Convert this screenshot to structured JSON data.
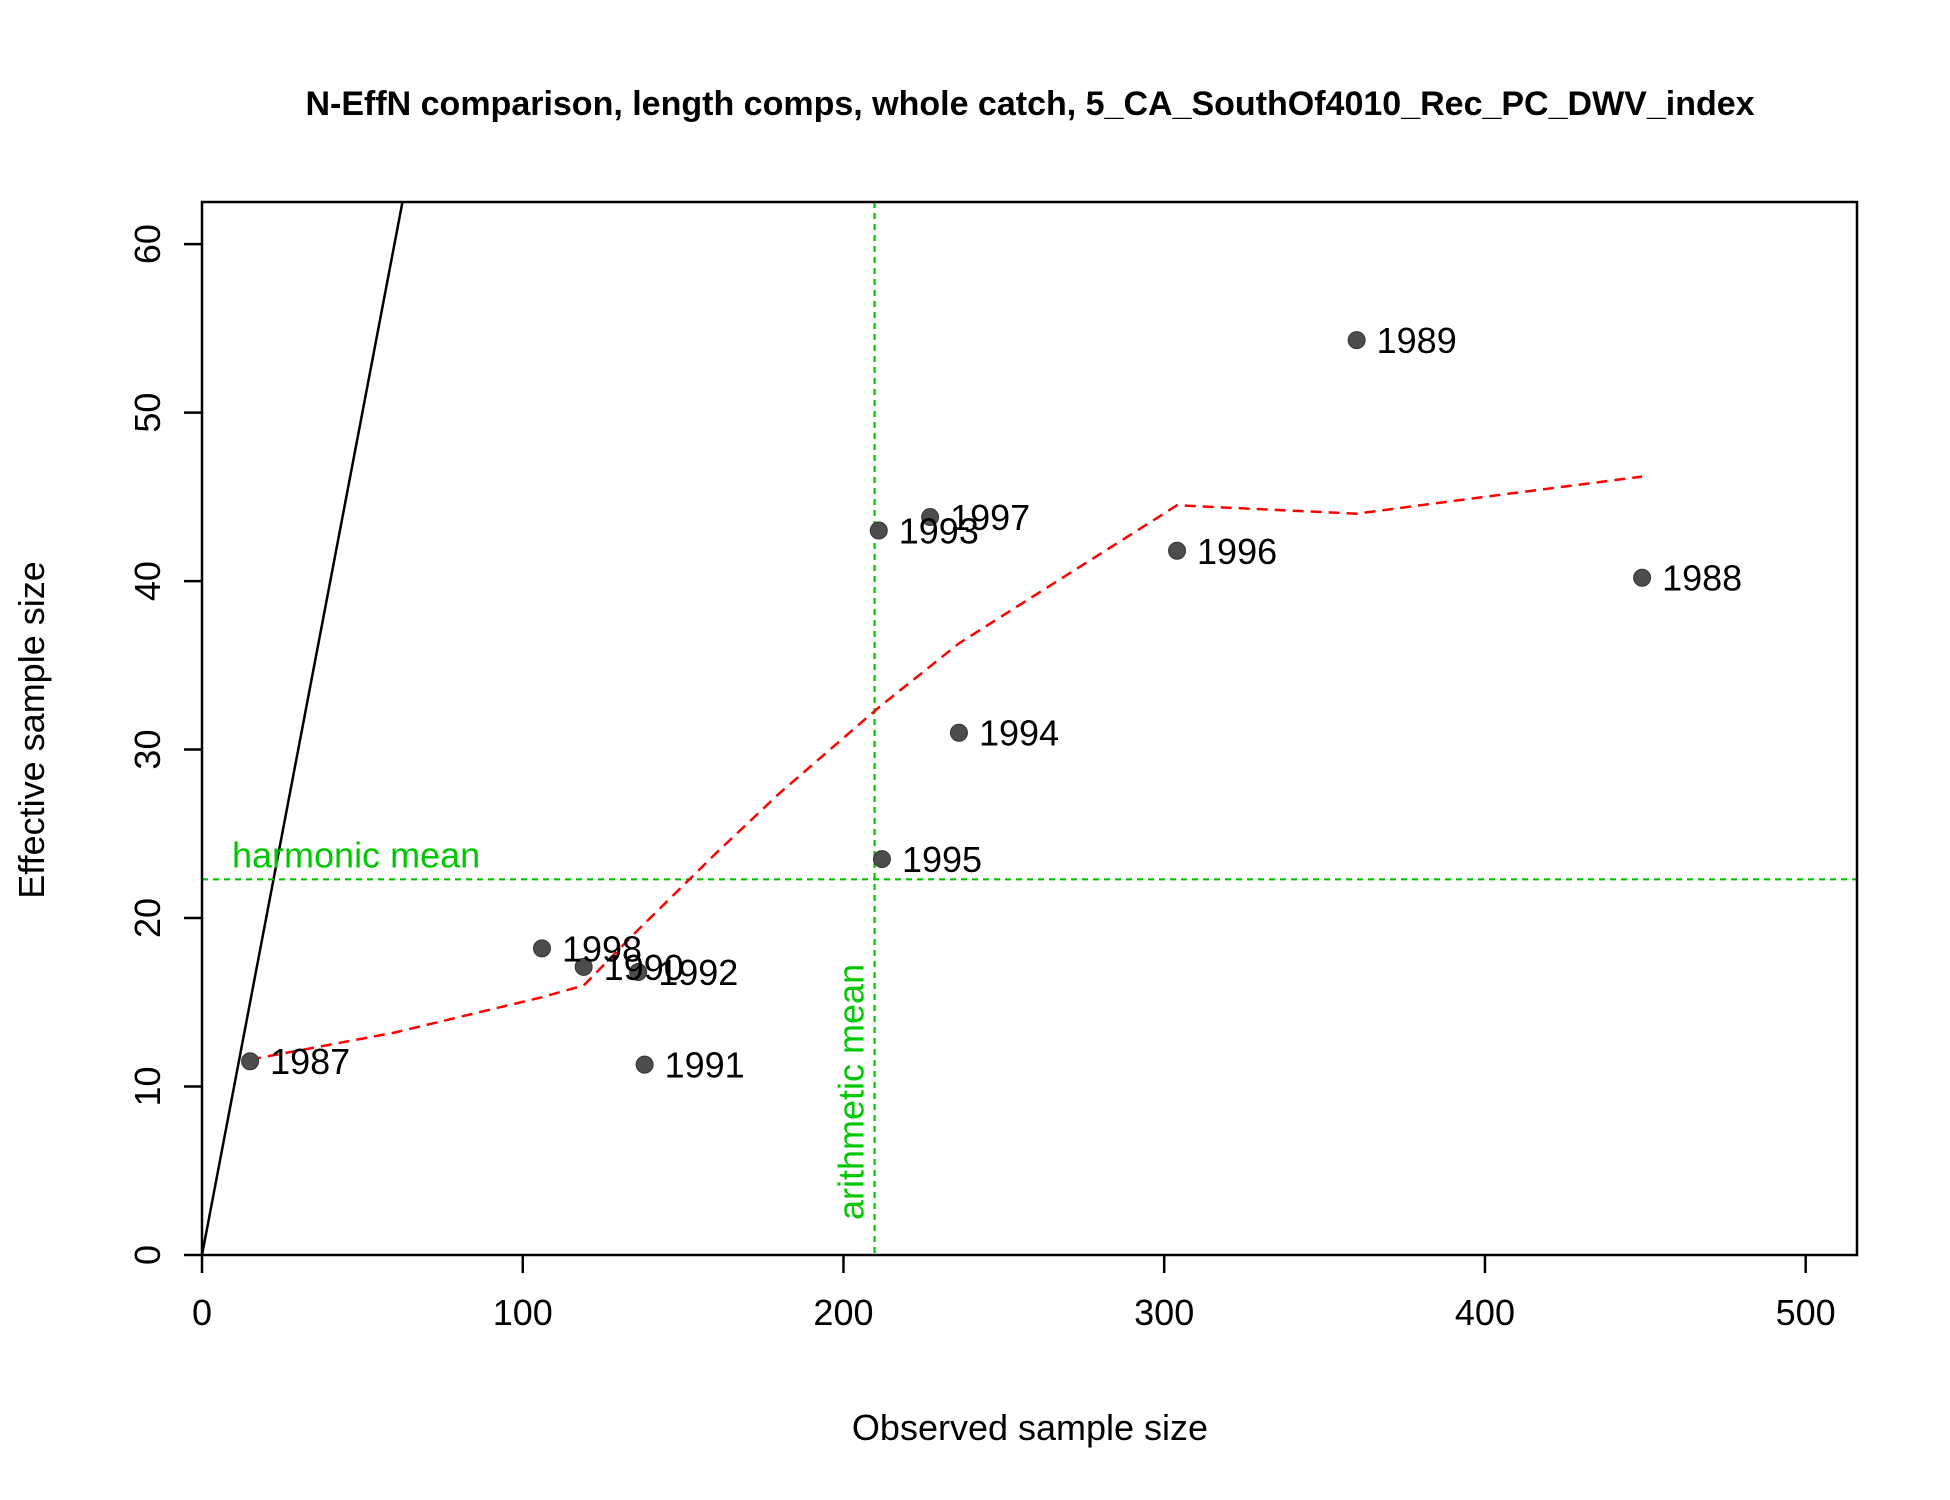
{
  "chart_data": {
    "type": "scatter",
    "title": "N-EffN comparison, length comps, whole catch, 5_CA_SouthOf4010_Rec_PC_DWV_index",
    "xlabel": "Observed sample size",
    "ylabel": "Effective sample size",
    "xlim": [
      0,
      516
    ],
    "ylim": [
      0,
      62.5
    ],
    "xticks": [
      0,
      100,
      200,
      300,
      400,
      500
    ],
    "yticks": [
      0,
      10,
      20,
      30,
      40,
      50,
      60
    ],
    "grid": false,
    "points": [
      {
        "label": "1987",
        "x": 15,
        "y": 11.5
      },
      {
        "label": "1988",
        "x": 449,
        "y": 40.2
      },
      {
        "label": "1989",
        "x": 360,
        "y": 54.3
      },
      {
        "label": "1990",
        "x": 119,
        "y": 17.1
      },
      {
        "label": "1991",
        "x": 138,
        "y": 11.3
      },
      {
        "label": "1992",
        "x": 136,
        "y": 16.8
      },
      {
        "label": "1993",
        "x": 211,
        "y": 43.0
      },
      {
        "label": "1994",
        "x": 236,
        "y": 31.0
      },
      {
        "label": "1995",
        "x": 212,
        "y": 23.5
      },
      {
        "label": "1996",
        "x": 304,
        "y": 41.8
      },
      {
        "label": "1997",
        "x": 227,
        "y": 43.8
      },
      {
        "label": "1998",
        "x": 106,
        "y": 18.2
      }
    ],
    "point_color": "#4d4d4d",
    "identity_line": {
      "slope": 1,
      "color": "#000000"
    },
    "smoother": {
      "color": "#ff0000",
      "style": "dashed",
      "x": [
        15,
        60,
        106,
        119,
        136,
        160,
        180,
        211,
        236,
        270,
        304,
        360,
        400,
        449
      ],
      "y": [
        11.6,
        13.2,
        15.3,
        16.0,
        19.3,
        23.8,
        27.4,
        32.5,
        36.3,
        40.4,
        44.5,
        44.0,
        45.0,
        46.2
      ]
    },
    "harmonic_mean": {
      "label": "harmonic mean",
      "value": 22.3,
      "color": "#00c800"
    },
    "arithmetic_mean": {
      "label": "arithmetic mean",
      "value": 209.7,
      "color": "#00c800"
    }
  }
}
